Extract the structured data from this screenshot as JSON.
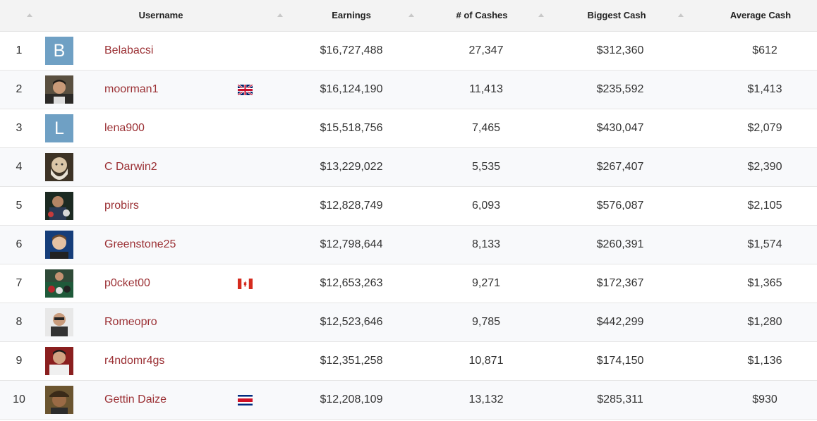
{
  "headers": {
    "username": "Username",
    "earnings": "Earnings",
    "cashes": "# of Cashes",
    "biggest": "Biggest Cash",
    "average": "Average Cash"
  },
  "colors": {
    "username_link": "#9b3034",
    "header_bg": "#f3f3f3",
    "avatar_letter_bg": "#6fa0c4"
  },
  "rows": [
    {
      "rank": "1",
      "avatar_letter": "B",
      "username": "Belabacsi",
      "flag": "",
      "earnings": "$16,727,488",
      "cashes": "27,347",
      "biggest": "$312,360",
      "average": "$612"
    },
    {
      "rank": "2",
      "avatar_letter": "",
      "username": "moorman1",
      "flag": "uk-flag-icon",
      "earnings": "$16,124,190",
      "cashes": "11,413",
      "biggest": "$235,592",
      "average": "$1,413"
    },
    {
      "rank": "3",
      "avatar_letter": "L",
      "username": "lena900",
      "flag": "",
      "earnings": "$15,518,756",
      "cashes": "7,465",
      "biggest": "$430,047",
      "average": "$2,079"
    },
    {
      "rank": "4",
      "avatar_letter": "",
      "username": "C Darwin2",
      "flag": "",
      "earnings": "$13,229,022",
      "cashes": "5,535",
      "biggest": "$267,407",
      "average": "$2,390"
    },
    {
      "rank": "5",
      "avatar_letter": "",
      "username": "probirs",
      "flag": "",
      "earnings": "$12,828,749",
      "cashes": "6,093",
      "biggest": "$576,087",
      "average": "$2,105"
    },
    {
      "rank": "6",
      "avatar_letter": "",
      "username": "Greenstone25",
      "flag": "",
      "earnings": "$12,798,644",
      "cashes": "8,133",
      "biggest": "$260,391",
      "average": "$1,574"
    },
    {
      "rank": "7",
      "avatar_letter": "",
      "username": "p0cket00",
      "flag": "canada-flag-icon",
      "earnings": "$12,653,263",
      "cashes": "9,271",
      "biggest": "$172,367",
      "average": "$1,365"
    },
    {
      "rank": "8",
      "avatar_letter": "",
      "username": "Romeopro",
      "flag": "",
      "earnings": "$12,523,646",
      "cashes": "9,785",
      "biggest": "$442,299",
      "average": "$1,280"
    },
    {
      "rank": "9",
      "avatar_letter": "",
      "username": "r4ndomr4gs",
      "flag": "",
      "earnings": "$12,351,258",
      "cashes": "10,871",
      "biggest": "$174,150",
      "average": "$1,136"
    },
    {
      "rank": "10",
      "avatar_letter": "",
      "username": "Gettin Daize",
      "flag": "costa-rica-flag-icon",
      "earnings": "$12,208,109",
      "cashes": "13,132",
      "biggest": "$285,311",
      "average": "$930"
    }
  ]
}
